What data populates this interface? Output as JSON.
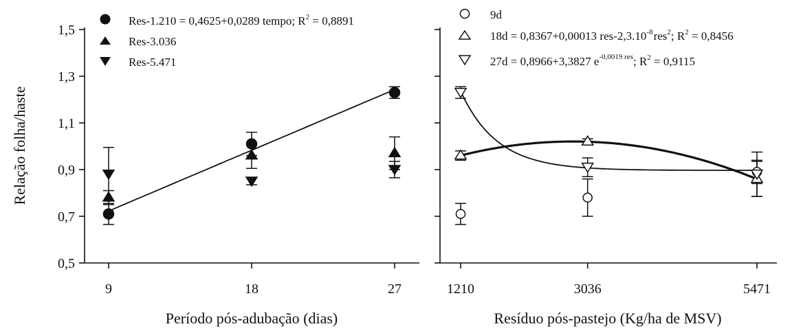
{
  "chart_data": [
    {
      "type": "scatter",
      "xlabel": "Período pós-adubação (dias)",
      "ylabel": "Relação folha/haste",
      "x_ticks": [
        "9",
        "18",
        "27"
      ],
      "y_ticks": [
        "0,5",
        "0,7",
        "0,9",
        "1,1",
        "1,3",
        "1,5"
      ],
      "xlim": [
        9,
        27
      ],
      "ylim": [
        0.5,
        1.5
      ],
      "series": [
        {
          "name": "Res-1.210",
          "marker": "circle-filled",
          "x": [
            9,
            18,
            27
          ],
          "y": [
            0.71,
            1.01,
            1.23
          ],
          "err": [
            0.045,
            0.05,
            0.025
          ],
          "fit": {
            "kind": "linear",
            "a": 0.4625,
            "b": 0.0289
          },
          "legend": "Res-1.210 = 0,4625+0,0289 tempo; R",
          "legend_sup": "2",
          "legend_tail": " = 0,8891"
        },
        {
          "name": "Res-3.036",
          "marker": "triangle-up-filled",
          "x": [
            9,
            18,
            27
          ],
          "y": [
            0.78,
            0.96,
            0.97
          ],
          "err": [
            0.03,
            0.055,
            0.07
          ],
          "legend": "Res-3.036"
        },
        {
          "name": "Res-5.471",
          "marker": "triangle-down-filled",
          "x": [
            9,
            18,
            27
          ],
          "y": [
            0.88,
            0.85,
            0.9
          ],
          "err": [
            0.115,
            0.015,
            0.035
          ],
          "legend": "Res-5.471"
        }
      ]
    },
    {
      "type": "scatter",
      "xlabel": "Resíduo pós-pastejo (Kg/ha de MSV)",
      "ylabel": "",
      "x_ticks": [
        "1210",
        "3036",
        "5471"
      ],
      "xlim": [
        1210,
        5471
      ],
      "ylim": [
        0.5,
        1.5
      ],
      "series": [
        {
          "name": "9d",
          "marker": "circle-open",
          "x": [
            1210,
            3036,
            5471
          ],
          "y": [
            0.71,
            0.78,
            0.89
          ],
          "err": [
            0.045,
            0.08,
            0.05
          ],
          "legend": "9d"
        },
        {
          "name": "18d",
          "marker": "triangle-up-open",
          "x": [
            1210,
            3036,
            5471
          ],
          "y": [
            0.96,
            1.02,
            0.86
          ],
          "err": [
            0.02,
            0.012,
            0.075
          ],
          "fit": {
            "kind": "quadratic",
            "a": 0.8367,
            "b": 0.00013,
            "c": -2.3e-08
          },
          "legend": "18d = 0,8367+0,00013 res-2,3.10",
          "legend_sup1": "-8",
          "legend_mid": "res",
          "legend_sup2": "2",
          "legend_mid2": "; R",
          "legend_sup3": "2",
          "legend_tail": " = 0,8456"
        },
        {
          "name": "27d",
          "marker": "triangle-down-open",
          "x": [
            1210,
            3036,
            5471
          ],
          "y": [
            1.23,
            0.91,
            0.88
          ],
          "err": [
            0.025,
            0.04,
            0.095
          ],
          "fit": {
            "kind": "exponential",
            "a": 0.8966,
            "b": 3.3827,
            "k": -0.0019
          },
          "legend": "27d = 0,8966+3,3827 e",
          "legend_sup": "-0,0019 res",
          "legend_mid": "; R",
          "legend_sup2": "2",
          "legend_tail": " = 0,9115"
        }
      ]
    }
  ]
}
